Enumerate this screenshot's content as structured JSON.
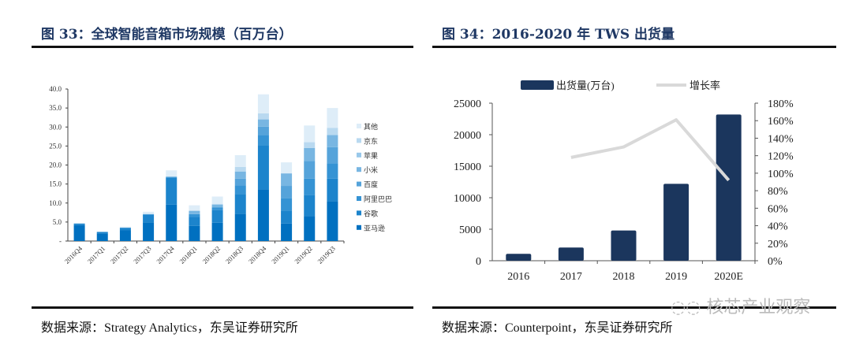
{
  "left": {
    "title": "图 33：全球智能音箱市场规模（百万台）",
    "source": "数据来源：Strategy Analytics，东吴证券研究所"
  },
  "right": {
    "title": "图 34：2016-2020 年 TWS 出货量",
    "source": "数据来源：Counterpoint，东吴证券研究所"
  },
  "watermark": "核芯产业观察",
  "chart_data": [
    {
      "type": "bar",
      "stacked": true,
      "title": "全球智能音箱市场规模（百万台）",
      "categories": [
        "2016Q4",
        "2017Q1",
        "2017Q2",
        "2017Q3",
        "2017Q4",
        "2018Q1",
        "2018Q2",
        "2018Q3",
        "2018Q4",
        "2019Q1",
        "2019Q2",
        "2019Q3"
      ],
      "ylim": [
        0,
        40
      ],
      "yticks": [
        "-",
        "5.0",
        "10.0",
        "15.0",
        "20.0",
        "25.0",
        "30.0",
        "35.0",
        "40.0"
      ],
      "legend_position": "right",
      "series": [
        {
          "name": "亚马逊",
          "color": "#0070c0",
          "values": [
            4.2,
            2.0,
            2.8,
            4.9,
            9.6,
            4.0,
            4.8,
            7.2,
            13.6,
            4.6,
            6.6,
            10.5
          ]
        },
        {
          "name": "谷歌",
          "color": "#1c84cc",
          "values": [
            0.4,
            0.4,
            0.7,
            2.0,
            7.0,
            2.4,
            3.3,
            5.2,
            11.6,
            3.4,
            5.5,
            5.9
          ]
        },
        {
          "name": "阿里巴巴",
          "color": "#3593d4",
          "values": [
            0,
            0,
            0,
            0.2,
            0.3,
            0.7,
            0.7,
            2.2,
            2.7,
            3.2,
            4.3,
            4.0
          ]
        },
        {
          "name": "百度",
          "color": "#55a3da",
          "values": [
            0,
            0,
            0,
            0,
            0,
            0.1,
            0.1,
            1.8,
            2.2,
            3.3,
            4.7,
            4.3
          ]
        },
        {
          "name": "小米",
          "color": "#78b6e2",
          "values": [
            0,
            0,
            0,
            0,
            0,
            0.7,
            0.7,
            1.9,
            1.9,
            3.3,
            3.4,
            3.2
          ]
        },
        {
          "name": "苹果",
          "color": "#99c8ea",
          "values": [
            0,
            0,
            0,
            0,
            0,
            0,
            0,
            0,
            0,
            0,
            0,
            0
          ]
        },
        {
          "name": "京东",
          "color": "#b9d9f0",
          "values": [
            0,
            0,
            0,
            0,
            0,
            0.2,
            0.2,
            1.2,
            1.6,
            0,
            1.5,
            1.9
          ]
        },
        {
          "name": "其他",
          "color": "#deedf8",
          "values": [
            0,
            0,
            0.3,
            0.6,
            1.7,
            1.3,
            1.9,
            3.1,
            5.0,
            2.9,
            4.4,
            5.2
          ]
        }
      ]
    },
    {
      "type": "bar+line",
      "title": "2016-2020 年 TWS 出货量",
      "categories": [
        "2016",
        "2017",
        "2018",
        "2019",
        "2020E"
      ],
      "ylim": [
        0,
        25000
      ],
      "yticks": [
        "0",
        "5000",
        "10000",
        "15000",
        "20000",
        "25000"
      ],
      "y2lim": [
        0,
        180
      ],
      "y2ticks": [
        "0%",
        "20%",
        "40%",
        "60%",
        "80%",
        "100%",
        "120%",
        "140%",
        "160%",
        "180%"
      ],
      "legend_position": "top",
      "series": [
        {
          "name": "出货量(万台)",
          "type": "bar",
          "color": "#1b365d",
          "values": [
            1100,
            2100,
            4800,
            12200,
            23200
          ]
        },
        {
          "name": "增长率",
          "type": "line",
          "axis": "right",
          "color": "#d9d9d9",
          "values": [
            null,
            118,
            130,
            161,
            92
          ]
        }
      ]
    }
  ]
}
